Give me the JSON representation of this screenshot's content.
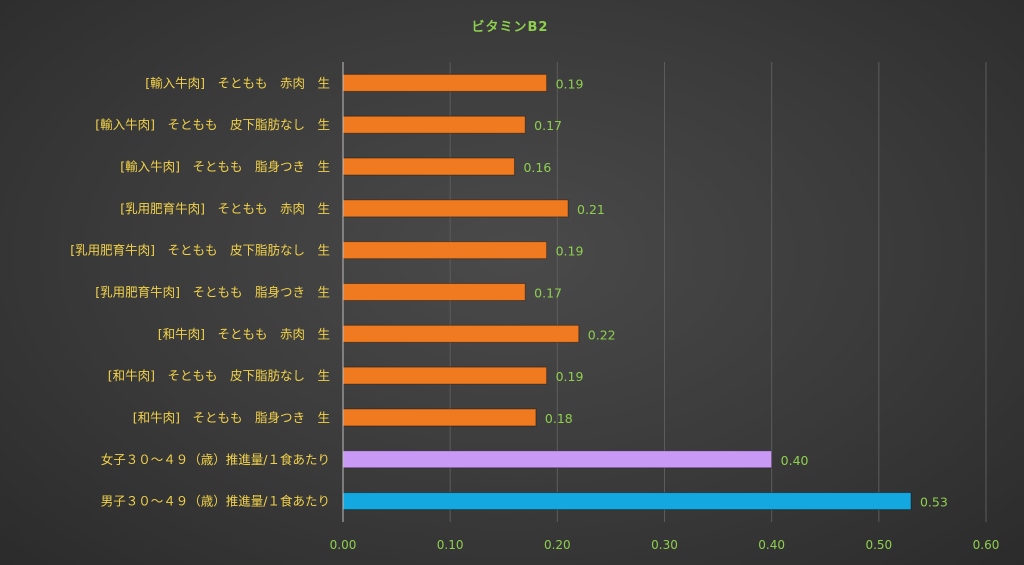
{
  "chart_data": {
    "type": "bar",
    "orientation": "horizontal",
    "title": "ビタミンB2",
    "categories": [
      "[輸入牛肉]　そともも　赤肉　生",
      "[輸入牛肉]　そともも　皮下脂肪なし　生",
      "[輸入牛肉]　そともも　脂身つき　生",
      "[乳用肥育牛肉]　そともも　赤肉　生",
      "[乳用肥育牛肉]　そともも　皮下脂肪なし　生",
      "[乳用肥育牛肉]　そともも　脂身つき　生",
      "[和牛肉]　そともも　赤肉　生",
      "[和牛肉]　そともも　皮下脂肪なし　生",
      "[和牛肉]　そともも　脂身つき　生",
      "女子３０～４９（歳）推進量/１食あたり",
      "男子３０～４９（歳）推進量/１食あたり"
    ],
    "values": [
      0.19,
      0.17,
      0.16,
      0.21,
      0.19,
      0.17,
      0.22,
      0.19,
      0.18,
      0.4,
      0.53
    ],
    "data_labels": [
      "0.19",
      "0.17",
      "0.16",
      "0.21",
      "0.19",
      "0.17",
      "0.22",
      "0.19",
      "0.18",
      "0.40",
      "0.53"
    ],
    "bar_colors": [
      "#f07a20",
      "#f07a20",
      "#f07a20",
      "#f07a20",
      "#f07a20",
      "#f07a20",
      "#f07a20",
      "#f07a20",
      "#f07a20",
      "#c99af5",
      "#14a8e0"
    ],
    "xlim": [
      0,
      0.6
    ],
    "xticks": [
      0,
      0.1,
      0.2,
      0.3,
      0.4,
      0.5,
      0.6
    ],
    "xtick_labels": [
      "0.00",
      "0.10",
      "0.20",
      "0.30",
      "0.40",
      "0.50",
      "0.60"
    ],
    "grid": true,
    "legend": false
  }
}
